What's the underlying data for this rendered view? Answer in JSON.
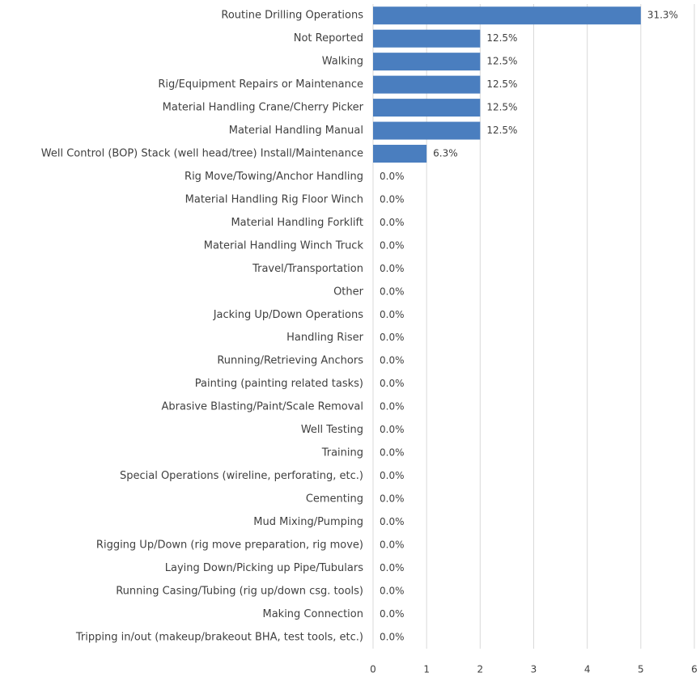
{
  "chart_data": {
    "type": "bar",
    "orientation": "horizontal",
    "color": "#4a7ebf",
    "grid": true,
    "categories": [
      "Routine Drilling Operations",
      "Not Reported",
      "Walking",
      "Rig/Equipment Repairs or Maintenance",
      "Material Handling Crane/Cherry Picker",
      "Material Handling Manual",
      "Well Control (BOP) Stack (well head/tree) Install/Maintenance",
      "Rig Move/Towing/Anchor Handling",
      "Material Handling Rig Floor Winch",
      "Material Handling Forklift",
      "Material Handling Winch Truck",
      "Travel/Transportation",
      "Other",
      "Jacking Up/Down Operations",
      "Handling Riser",
      "Running/Retrieving Anchors",
      "Painting (painting related tasks)",
      "Abrasive Blasting/Paint/Scale Removal",
      "Well Testing",
      "Training",
      "Special Operations (wireline, perforating, etc.)",
      "Cementing",
      "Mud Mixing/Pumping",
      "Rigging Up/Down (rig move preparation, rig move)",
      "Laying Down/Picking up Pipe/Tubulars",
      "Running Casing/Tubing (rig up/down csg. tools)",
      "Making Connection",
      "Tripping in/out (makeup/brakeout BHA, test tools, etc.)"
    ],
    "values": [
      5,
      2,
      2,
      2,
      2,
      2,
      1,
      0,
      0,
      0,
      0,
      0,
      0,
      0,
      0,
      0,
      0,
      0,
      0,
      0,
      0,
      0,
      0,
      0,
      0,
      0,
      0,
      0
    ],
    "value_labels": [
      "31.3%",
      "12.5%",
      "12.5%",
      "12.5%",
      "12.5%",
      "12.5%",
      "6.3%",
      "0.0%",
      "0.0%",
      "0.0%",
      "0.0%",
      "0.0%",
      "0.0%",
      "0.0%",
      "0.0%",
      "0.0%",
      "0.0%",
      "0.0%",
      "0.0%",
      "0.0%",
      "0.0%",
      "0.0%",
      "0.0%",
      "0.0%",
      "0.0%",
      "0.0%",
      "0.0%",
      "0.0%"
    ],
    "xlim": [
      0,
      6
    ],
    "xticks": [
      0,
      1,
      2,
      3,
      4,
      5,
      6
    ]
  }
}
